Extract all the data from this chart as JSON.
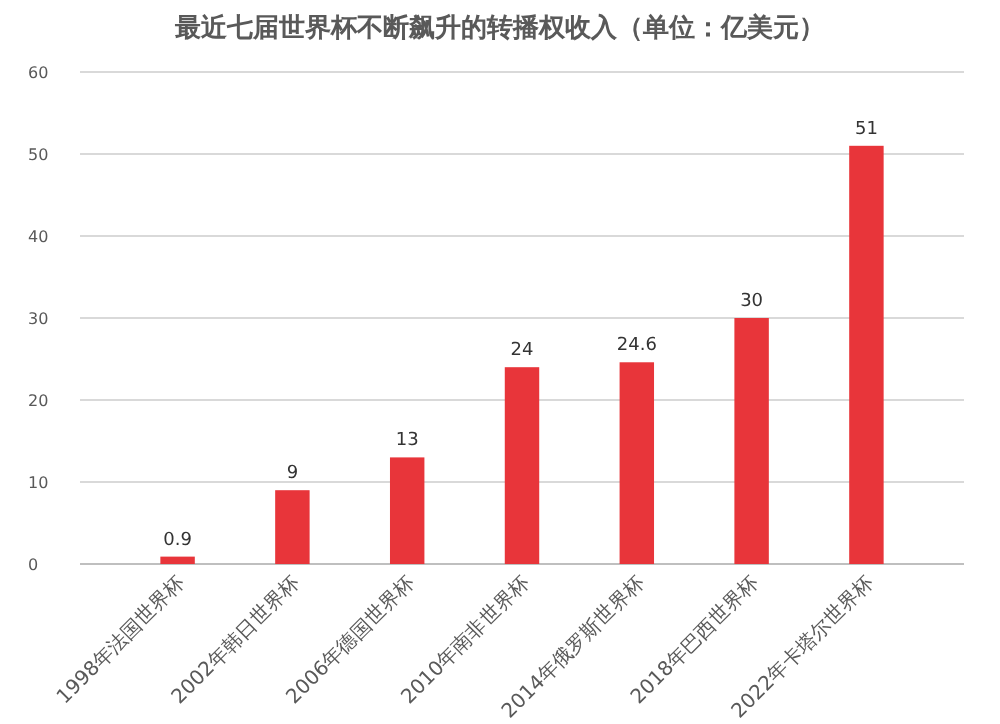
{
  "chart_data": {
    "type": "bar",
    "title": "最近七届世界杯不断飙升的转播权收入（单位：亿美元）",
    "categories": [
      "1998年法国世界杯",
      "2002年韩日世界杯",
      "2006年德国世界杯",
      "2010年南非世界杯",
      "2014年俄罗斯世界杯",
      "2018年巴西世界杯",
      "2022年卡塔尔世界杯"
    ],
    "values": [
      0.9,
      9,
      13,
      24,
      24.6,
      30,
      51
    ],
    "color": "#e8353a",
    "data_labels": true,
    "ylim": [
      0,
      60
    ],
    "yticks": [
      0,
      10,
      20,
      30,
      40,
      50,
      60
    ],
    "grid": "y"
  }
}
